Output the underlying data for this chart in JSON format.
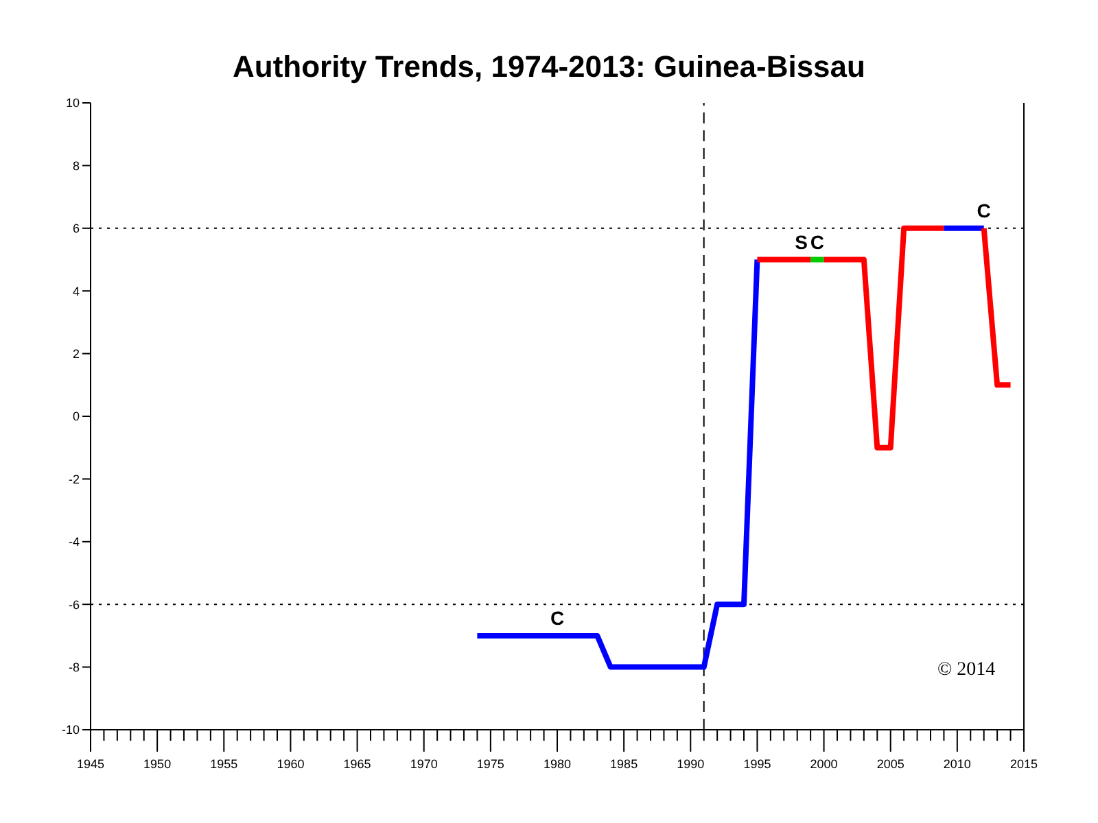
{
  "chart_data": {
    "type": "line",
    "title": "Authority Trends, 1974-2013: Guinea-Bissau",
    "series": [
      {
        "color": "#0000ff",
        "x": [
          1974,
          1983,
          1984,
          1991,
          1992,
          1994,
          1995
        ],
        "values": [
          -7,
          -7,
          -8,
          -8,
          -6,
          -6,
          5
        ]
      },
      {
        "color": "#ff0000",
        "x": [
          1995,
          1999
        ],
        "values": [
          5,
          5
        ]
      },
      {
        "color": "#00cc00",
        "x": [
          1999,
          2000
        ],
        "values": [
          5,
          5
        ]
      },
      {
        "color": "#ff0000",
        "x": [
          2000,
          2003,
          2004,
          2005,
          2006,
          2009
        ],
        "values": [
          5,
          5,
          -1,
          -1,
          6,
          6
        ]
      },
      {
        "color": "#0000ff",
        "x": [
          2009,
          2012
        ],
        "values": [
          6,
          6
        ]
      },
      {
        "color": "#ff0000",
        "x": [
          2012,
          2013,
          2014
        ],
        "values": [
          6,
          1,
          1
        ]
      }
    ],
    "xlim": [
      1945,
      2015
    ],
    "ylim": [
      -10,
      10
    ],
    "yticks": [
      -10,
      -8,
      -6,
      -4,
      -2,
      0,
      2,
      4,
      6,
      8,
      10
    ],
    "xticks": [
      1945,
      {
        "value": 1946,
        "label": null
      },
      {
        "value": 1947,
        "label": null
      },
      {
        "value": 1948,
        "label": null
      },
      {
        "value": 1949,
        "label": null
      },
      1950,
      {
        "value": 1951,
        "label": null
      },
      {
        "value": 1952,
        "label": null
      },
      {
        "value": 1953,
        "label": null
      },
      {
        "value": 1954,
        "label": null
      },
      1955,
      {
        "value": 1956,
        "label": null
      },
      {
        "value": 1957,
        "label": null
      },
      {
        "value": 1958,
        "label": null
      },
      {
        "value": 1959,
        "label": null
      },
      1960,
      {
        "value": 1961,
        "label": null
      },
      {
        "value": 1962,
        "label": null
      },
      {
        "value": 1963,
        "label": null
      },
      {
        "value": 1964,
        "label": null
      },
      1965,
      {
        "value": 1966,
        "label": null
      },
      {
        "value": 1967,
        "label": null
      },
      {
        "value": 1968,
        "label": null
      },
      {
        "value": 1969,
        "label": null
      },
      1970,
      {
        "value": 1971,
        "label": null
      },
      {
        "value": 1972,
        "label": null
      },
      {
        "value": 1973,
        "label": null
      },
      {
        "value": 1974,
        "label": null
      },
      1975,
      {
        "value": 1976,
        "label": null
      },
      {
        "value": 1977,
        "label": null
      },
      {
        "value": 1978,
        "label": null
      },
      {
        "value": 1979,
        "label": null
      },
      1980,
      {
        "value": 1981,
        "label": null
      },
      {
        "value": 1982,
        "label": null
      },
      {
        "value": 1983,
        "label": null
      },
      {
        "value": 1984,
        "label": null
      },
      1985,
      {
        "value": 1986,
        "label": null
      },
      {
        "value": 1987,
        "label": null
      },
      {
        "value": 1988,
        "label": null
      },
      {
        "value": 1989,
        "label": null
      },
      1990,
      {
        "value": 1991,
        "label": null
      },
      {
        "value": 1992,
        "label": null
      },
      {
        "value": 1993,
        "label": null
      },
      {
        "value": 1994,
        "label": null
      },
      1995,
      {
        "value": 1996,
        "label": null
      },
      {
        "value": 1997,
        "label": null
      },
      {
        "value": 1998,
        "label": null
      },
      {
        "value": 1999,
        "label": null
      },
      2000,
      {
        "value": 2001,
        "label": null
      },
      {
        "value": 2002,
        "label": null
      },
      {
        "value": 2003,
        "label": null
      },
      {
        "value": 2004,
        "label": null
      },
      2005,
      {
        "value": 2006,
        "label": null
      },
      {
        "value": 2007,
        "label": null
      },
      {
        "value": 2008,
        "label": null
      },
      {
        "value": 2009,
        "label": null
      },
      2010,
      {
        "value": 2011,
        "label": null
      },
      {
        "value": 2012,
        "label": null
      },
      {
        "value": 2013,
        "label": null
      },
      {
        "value": 2014,
        "label": null
      },
      2015
    ],
    "ref_lines": [
      {
        "axis": "x",
        "value": 1991,
        "color": "#000000",
        "line_style": "dashed"
      },
      {
        "axis": "y",
        "value": 6,
        "color": "#000000",
        "line_style": "dotted"
      },
      {
        "axis": "y",
        "value": -6,
        "color": "#000000",
        "line_style": "dotted"
      }
    ],
    "annotations": [
      {
        "text": "C",
        "x": 1980,
        "y": -7
      },
      {
        "text": "S",
        "x": 1998.3,
        "y": 5
      },
      {
        "text": "C",
        "x": 1999.5,
        "y": 5
      },
      {
        "text": "C",
        "x": 2012,
        "y": 6
      },
      "© 2014"
    ],
    "marker": "none",
    "line_style": "solid"
  }
}
